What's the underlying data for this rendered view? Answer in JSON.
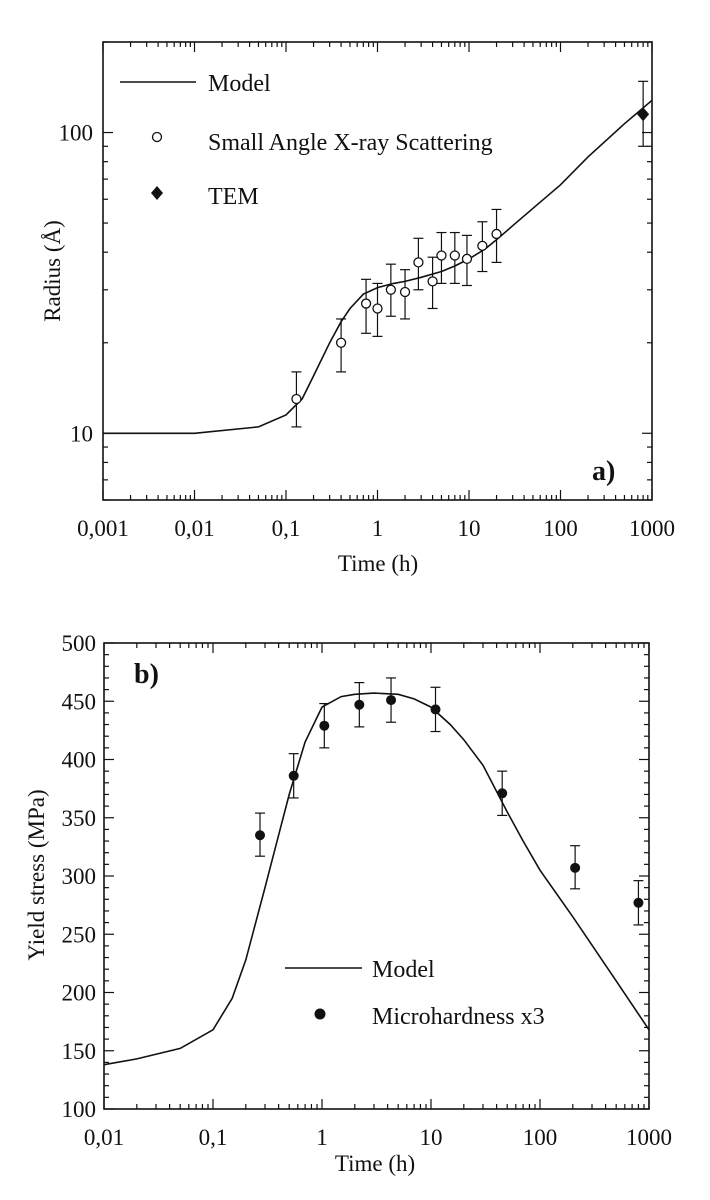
{
  "chart_data": [
    {
      "type": "line",
      "panel_label": "a)",
      "xlabel": "Time (h)",
      "ylabel": "Radius (Å)",
      "x_scale": "log",
      "y_scale": "log",
      "xlim": [
        0.001,
        1000
      ],
      "ylim": [
        6,
        200
      ],
      "x_tick_labels": [
        "0,001",
        "0,01",
        "0,1",
        "1",
        "10",
        "100",
        "1000"
      ],
      "y_tick_labels": [
        "10",
        "100"
      ],
      "grid": false,
      "legend_position": "top-left",
      "legend": [
        "Model",
        "Small Angle X-ray Scattering",
        "TEM"
      ],
      "series": [
        {
          "name": "Model",
          "style": "line",
          "x": [
            0.001,
            0.01,
            0.05,
            0.1,
            0.15,
            0.2,
            0.3,
            0.4,
            0.5,
            0.7,
            1,
            1.5,
            2,
            3,
            5,
            7,
            10,
            15,
            20,
            30,
            50,
            100,
            200,
            500,
            1000
          ],
          "y": [
            10,
            10,
            10.5,
            11.5,
            13,
            15.5,
            20,
            23.5,
            26,
            29,
            30.5,
            31.5,
            32,
            33,
            34.5,
            36,
            38,
            41,
            44,
            49,
            56,
            67,
            83,
            107,
            128
          ]
        },
        {
          "name": "Small Angle X-ray Scattering",
          "style": "open-circle",
          "x": [
            0.13,
            0.4,
            0.75,
            1,
            1.4,
            2,
            2.8,
            4,
            5,
            7,
            9.5,
            14,
            20
          ],
          "y": [
            13,
            20,
            27,
            26,
            30,
            29.5,
            37,
            32,
            39,
            39,
            38,
            42,
            46
          ],
          "err_low": [
            10.5,
            16,
            21.5,
            21,
            24.5,
            24,
            30,
            26,
            31.5,
            31.5,
            31,
            34.5,
            37
          ],
          "err_high": [
            16,
            24,
            32.5,
            31.5,
            36.5,
            35,
            44.5,
            38.5,
            46.5,
            46.5,
            45.5,
            50.5,
            55.5
          ]
        },
        {
          "name": "TEM",
          "style": "filled-diamond",
          "x": [
            800
          ],
          "y": [
            115
          ],
          "err_low": [
            90
          ],
          "err_high": [
            148
          ]
        }
      ]
    },
    {
      "type": "line",
      "panel_label": "b)",
      "xlabel": "Time (h)",
      "ylabel": "Yield stress (MPa)",
      "x_scale": "log",
      "y_scale": "linear",
      "xlim": [
        0.01,
        1000
      ],
      "ylim": [
        100,
        500
      ],
      "x_tick_labels": [
        "0,01",
        "0,1",
        "1",
        "10",
        "100",
        "1000"
      ],
      "y_tick_labels": [
        "100",
        "150",
        "200",
        "250",
        "300",
        "350",
        "400",
        "450",
        "500"
      ],
      "grid": false,
      "legend_position": "bottom-center",
      "legend": [
        "Model",
        "Microhardness x3"
      ],
      "series": [
        {
          "name": "Model",
          "style": "line",
          "x": [
            0.01,
            0.02,
            0.05,
            0.1,
            0.15,
            0.2,
            0.3,
            0.4,
            0.5,
            0.7,
            1,
            1.5,
            2,
            3,
            5,
            7,
            10,
            15,
            20,
            30,
            50,
            70,
            100,
            200,
            500,
            1000
          ],
          "y": [
            138,
            143,
            152,
            168,
            195,
            228,
            290,
            335,
            370,
            415,
            445,
            454,
            456,
            457,
            456,
            452,
            445,
            430,
            417,
            395,
            355,
            330,
            305,
            265,
            210,
            168
          ]
        },
        {
          "name": "Microhardness x3",
          "style": "filled-circle",
          "x": [
            0.27,
            0.55,
            1.05,
            2.2,
            4.3,
            11,
            45,
            210,
            800
          ],
          "y": [
            335,
            386,
            429,
            447,
            451,
            443,
            371,
            307,
            277
          ],
          "err_low": [
            317,
            367,
            410,
            428,
            432,
            424,
            352,
            289,
            258
          ],
          "err_high": [
            354,
            405,
            448,
            466,
            470,
            462,
            390,
            326,
            296
          ]
        }
      ]
    }
  ]
}
